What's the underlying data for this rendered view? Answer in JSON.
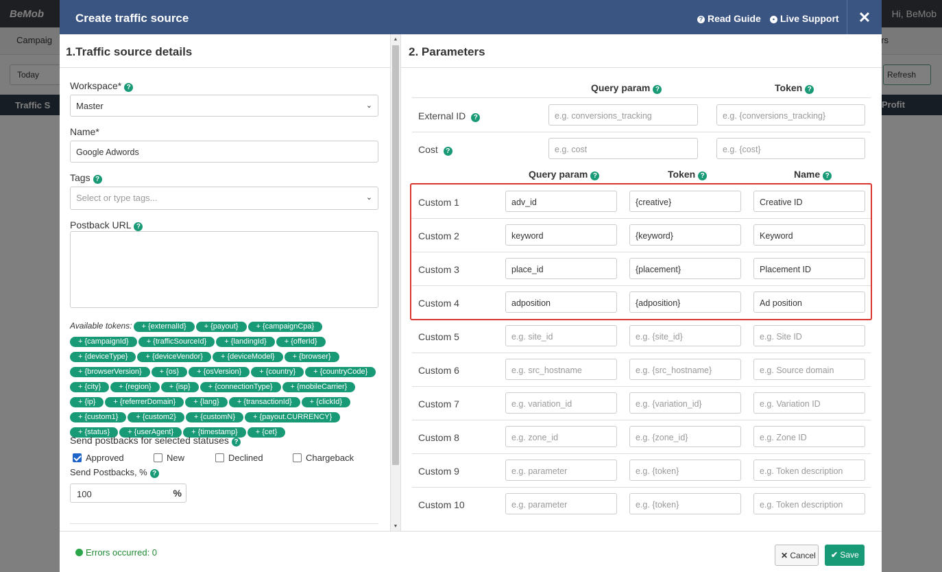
{
  "background": {
    "logo": "BeMob",
    "user": "Hi, BeMob",
    "nav_left": "Campaig",
    "nav_right": "rs",
    "today": "Today",
    "refresh": "Refresh",
    "th_left": "Traffic S",
    "th_right": "Profit"
  },
  "modal": {
    "title": "Create traffic source",
    "read_guide": "Read Guide",
    "live_support": "Live Support",
    "close": "✕"
  },
  "left": {
    "heading": "1.Traffic source details",
    "workspace_label": "Workspace*",
    "workspace_value": "Master",
    "name_label": "Name*",
    "name_value": "Google Adwords",
    "tags_label": "Tags",
    "tags_placeholder": "Select or type tags...",
    "postback_label": "Postback URL",
    "tokens_label": "Available tokens:",
    "tokens": [
      "+ {externalId}",
      "+ {payout}",
      "+ {campaignCpa}",
      "+ {campaignId}",
      "+ {trafficSourceId}",
      "+ {landingId}",
      "+ {offerId}",
      "+ {deviceType}",
      "+ {deviceVendor}",
      "+ {deviceModel}",
      "+ {browser}",
      "+ {browserVersion}",
      "+ {os}",
      "+ {osVersion}",
      "+ {country}",
      "+ {countryCode}",
      "+ {city}",
      "+ {region}",
      "+ {isp}",
      "+ {connectionType}",
      "+ {mobileCarrier}",
      "+ {ip}",
      "+ {referrerDomain}",
      "+ {lang}",
      "+ {transactionId}",
      "+ {clickId}",
      "+ {custom1}",
      "+ {custom2}",
      "+ {customN}",
      "+ {payout.CURRENCY}",
      "+ {status}",
      "+ {userAgent}",
      "+ {timestamp}",
      "+ {cet}"
    ],
    "statuses_label": "Send postbacks for selected statuses",
    "statuses": [
      {
        "label": "Approved",
        "checked": true
      },
      {
        "label": "New",
        "checked": false
      },
      {
        "label": "Declined",
        "checked": false
      },
      {
        "label": "Chargeback",
        "checked": false
      }
    ],
    "percent_label": "Send Postbacks, %",
    "percent_value": "100",
    "percent_unit": "%"
  },
  "right": {
    "heading": "2. Parameters",
    "col_query": "Query param",
    "col_token": "Token",
    "col_name": "Name",
    "external": {
      "label": "External ID",
      "query_ph": "e.g. conversions_tracking",
      "token_ph": "e.g. {conversions_tracking}"
    },
    "cost": {
      "label": "Cost",
      "query_ph": "e.g. cost",
      "token_ph": "e.g. {cost}"
    },
    "customs": [
      {
        "label": "Custom 1",
        "query": "adv_id",
        "token": "{creative}",
        "name": "Creative ID",
        "filled": true
      },
      {
        "label": "Custom 2",
        "query": "keyword",
        "token": "{keyword}",
        "name": "Keyword",
        "filled": true
      },
      {
        "label": "Custom 3",
        "query": "place_id",
        "token": "{placement}",
        "name": "Placement ID",
        "filled": true
      },
      {
        "label": "Custom 4",
        "query": "adposition",
        "token": "{adposition}",
        "name": "Ad position",
        "filled": true
      },
      {
        "label": "Custom 5",
        "query": "e.g. site_id",
        "token": "e.g. {site_id}",
        "name": "e.g. Site ID",
        "filled": false
      },
      {
        "label": "Custom 6",
        "query": "e.g. src_hostname",
        "token": "e.g. {src_hostname}",
        "name": "e.g. Source domain",
        "filled": false
      },
      {
        "label": "Custom 7",
        "query": "e.g. variation_id",
        "token": "e.g. {variation_id}",
        "name": "e.g. Variation ID",
        "filled": false
      },
      {
        "label": "Custom 8",
        "query": "e.g. zone_id",
        "token": "e.g. {zone_id}",
        "name": "e.g. Zone ID",
        "filled": false
      },
      {
        "label": "Custom 9",
        "query": "e.g. parameter",
        "token": "e.g. {token}",
        "name": "e.g. Token description",
        "filled": false
      },
      {
        "label": "Custom 10",
        "query": "e.g. parameter",
        "token": "e.g. {token}",
        "name": "e.g. Token description",
        "filled": false
      }
    ]
  },
  "footer": {
    "errors": "Errors occurred: 0",
    "cancel": "Cancel",
    "save": "Save"
  }
}
